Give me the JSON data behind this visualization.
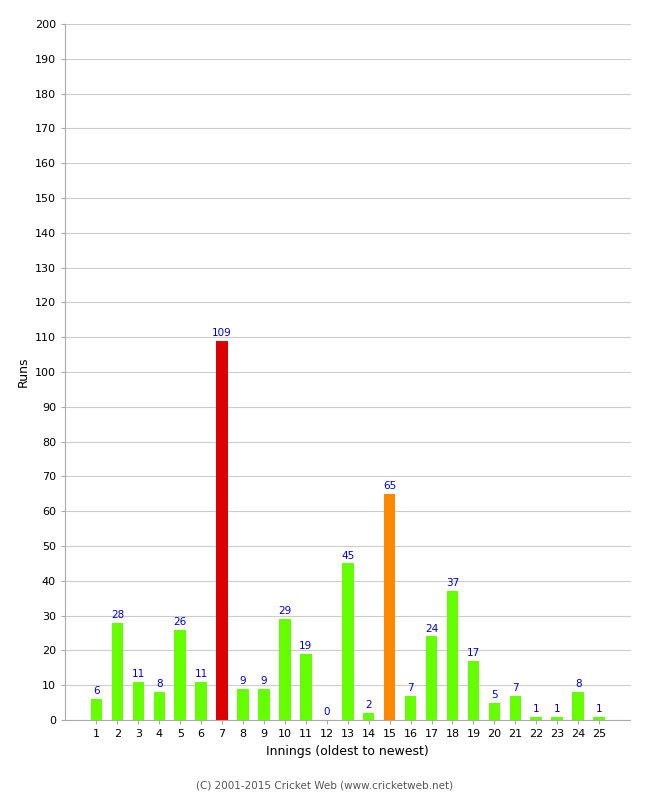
{
  "xlabel": "Innings (oldest to newest)",
  "ylabel": "Runs",
  "ylim": [
    0,
    200
  ],
  "yticks": [
    0,
    10,
    20,
    30,
    40,
    50,
    60,
    70,
    80,
    90,
    100,
    110,
    120,
    130,
    140,
    150,
    160,
    170,
    180,
    190,
    200
  ],
  "innings": [
    1,
    2,
    3,
    4,
    5,
    6,
    7,
    8,
    9,
    10,
    11,
    12,
    13,
    14,
    15,
    16,
    17,
    18,
    19,
    20,
    21,
    22,
    23,
    24,
    25
  ],
  "values": [
    6,
    28,
    11,
    8,
    26,
    11,
    109,
    9,
    9,
    29,
    19,
    0,
    45,
    2,
    65,
    7,
    24,
    37,
    17,
    5,
    7,
    1,
    1,
    8,
    1
  ],
  "colors": [
    "#66ff00",
    "#66ff00",
    "#66ff00",
    "#66ff00",
    "#66ff00",
    "#66ff00",
    "#dd0000",
    "#66ff00",
    "#66ff00",
    "#66ff00",
    "#66ff00",
    "#66ff00",
    "#66ff00",
    "#66ff00",
    "#ff8800",
    "#66ff00",
    "#66ff00",
    "#66ff00",
    "#66ff00",
    "#66ff00",
    "#66ff00",
    "#66ff00",
    "#66ff00",
    "#66ff00",
    "#66ff00"
  ],
  "label_color": "#0000cc",
  "bg_color": "#ffffff",
  "footer": "(C) 2001-2015 Cricket Web (www.cricketweb.net)",
  "bar_width": 0.55,
  "grid_color": "#cccccc",
  "spine_color": "#aaaaaa",
  "label_fontsize": 7.5,
  "tick_fontsize": 8,
  "axis_label_fontsize": 9,
  "footer_fontsize": 7.5
}
